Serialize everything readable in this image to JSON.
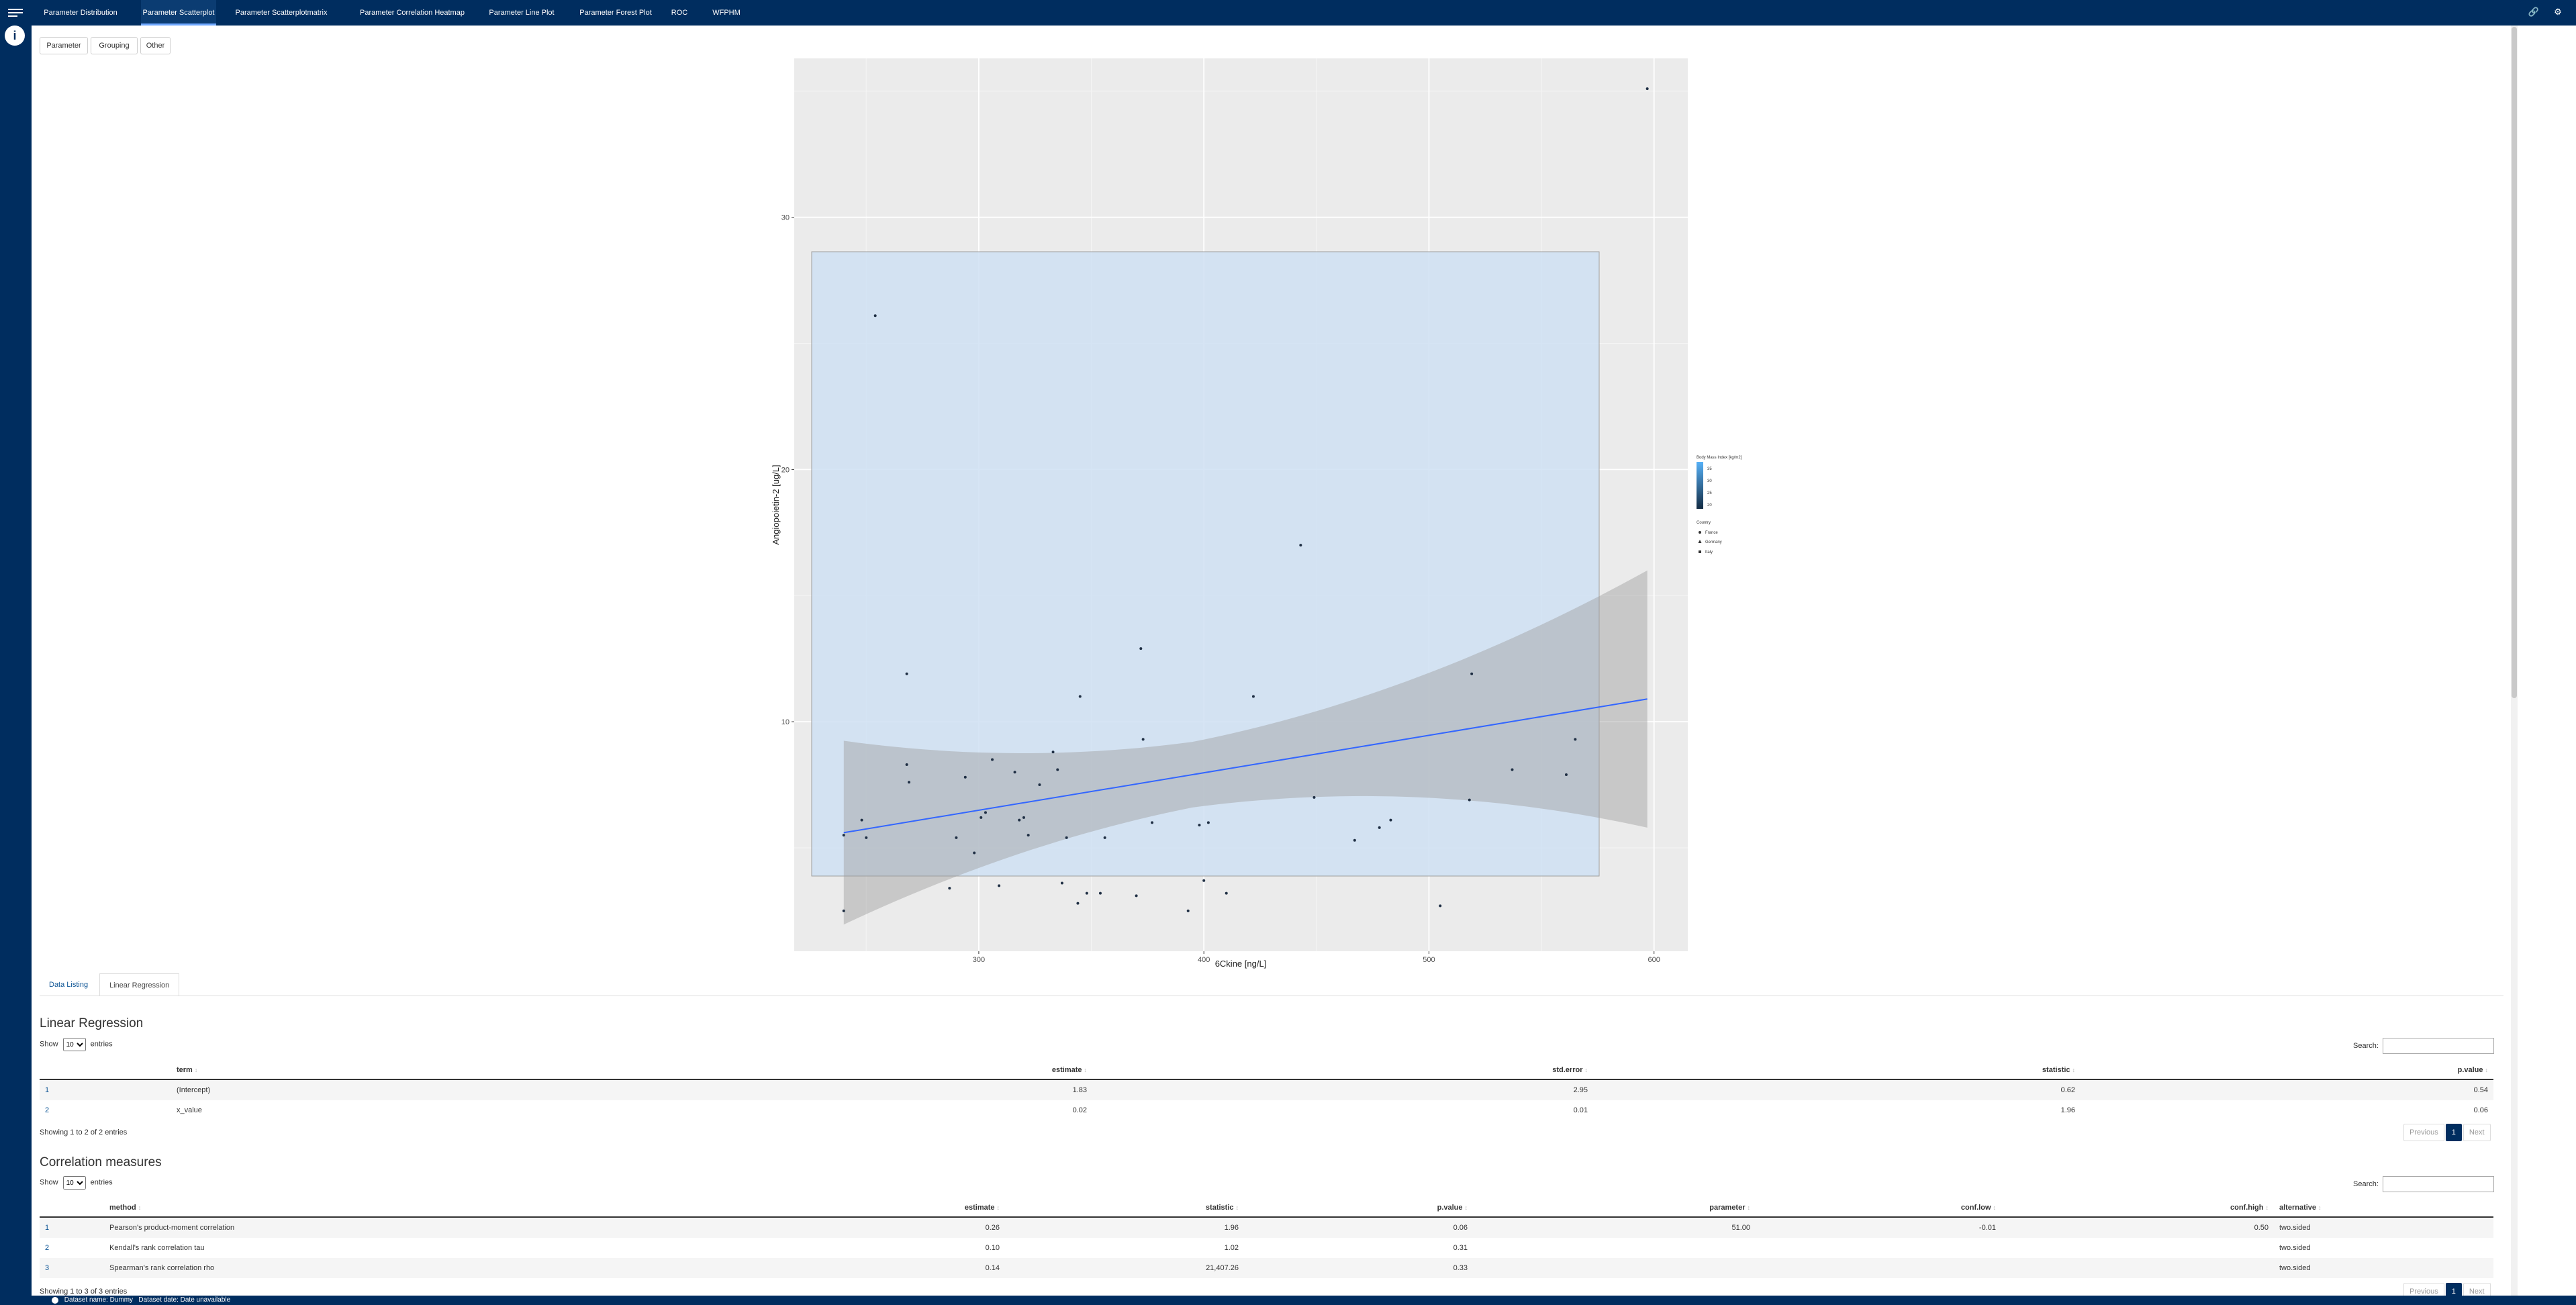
{
  "nav": {
    "tabs": [
      {
        "label": "Parameter Distribution",
        "active": false
      },
      {
        "label": "Parameter Scatterplot",
        "active": true
      },
      {
        "label": "Parameter Scatterplotmatrix",
        "active": false
      },
      {
        "label": "Parameter Correlation Heatmap",
        "active": false
      },
      {
        "label": "Parameter Line Plot",
        "active": false
      },
      {
        "label": "Parameter Forest Plot",
        "active": false
      },
      {
        "label": "ROC",
        "active": false
      },
      {
        "label": "WFPHM",
        "active": false
      }
    ],
    "info_icon": "i"
  },
  "sub_buttons": [
    "Parameter",
    "Grouping",
    "Other"
  ],
  "chart_data": {
    "type": "scatter",
    "xlabel": "6Ckine [ng/L]",
    "ylabel": "Angiopoietin-2 [ug/L]",
    "x_ticks": [
      "300",
      "400",
      "500",
      "600"
    ],
    "y_ticks": [
      "10",
      "20",
      "30"
    ],
    "xlim": [
      218,
      615
    ],
    "ylim": [
      0.9,
      36.3
    ],
    "grid": true,
    "points": [
      [
        240,
        2.5
      ],
      [
        240,
        5.5
      ],
      [
        248,
        6.1
      ],
      [
        250,
        5.4
      ],
      [
        254,
        26.1
      ],
      [
        268,
        8.3
      ],
      [
        268,
        11.9
      ],
      [
        269,
        7.6
      ],
      [
        287,
        3.4
      ],
      [
        290,
        5.4
      ],
      [
        294,
        7.8
      ],
      [
        298,
        4.8
      ],
      [
        301,
        6.2
      ],
      [
        303,
        6.4
      ],
      [
        306,
        8.5
      ],
      [
        309,
        3.5
      ],
      [
        316,
        8.0
      ],
      [
        318,
        6.1
      ],
      [
        320,
        6.2
      ],
      [
        322,
        5.5
      ],
      [
        327,
        7.5
      ],
      [
        333,
        8.8
      ],
      [
        335,
        8.1
      ],
      [
        337,
        3.6
      ],
      [
        339,
        5.4
      ],
      [
        344,
        2.8
      ],
      [
        345,
        11.0
      ],
      [
        348,
        3.2
      ],
      [
        354,
        3.2
      ],
      [
        356,
        5.4
      ],
      [
        370,
        3.1
      ],
      [
        372,
        12.9
      ],
      [
        373,
        9.3
      ],
      [
        377,
        6.0
      ],
      [
        393,
        2.5
      ],
      [
        398,
        5.9
      ],
      [
        400,
        3.7
      ],
      [
        402,
        6.0
      ],
      [
        410,
        3.2
      ],
      [
        422,
        11.0
      ],
      [
        443,
        17.0
      ],
      [
        449,
        7.0
      ],
      [
        467,
        5.3
      ],
      [
        478,
        5.8
      ],
      [
        483,
        6.1
      ],
      [
        505,
        2.7
      ],
      [
        518,
        6.9
      ],
      [
        519,
        11.9
      ],
      [
        537,
        8.1
      ],
      [
        561,
        7.9
      ],
      [
        565,
        9.3
      ],
      [
        597,
        35.1
      ]
    ],
    "regression_line": {
      "x": [
        240,
        597
      ],
      "y": [
        5.6,
        10.9
      ],
      "color": "#3366FF"
    },
    "legend": {
      "placement": "right",
      "colorbar_title": "Body Mass Index [kg/m2]",
      "colorbar_labels": [
        "35",
        "30",
        "25",
        "20"
      ],
      "group_title": "Country",
      "groups": [
        "France",
        "Germany",
        "Italy"
      ]
    }
  },
  "lower_tabs": [
    "Data Listing",
    "Linear Regression"
  ],
  "lr": {
    "title": "Linear Regression",
    "show_label": "Show",
    "entries_label": "entries",
    "page_size": "10",
    "search_label": "Search:",
    "columns": [
      "",
      "term",
      "estimate",
      "std.error",
      "statistic",
      "p.value"
    ],
    "rows": [
      [
        "1",
        "(Intercept)",
        "1.83",
        "2.95",
        "0.62",
        "0.54"
      ],
      [
        "2",
        "x_value",
        "0.02",
        "0.01",
        "1.96",
        "0.06"
      ]
    ],
    "info": "Showing 1 to 2 of 2 entries",
    "pager": [
      "Previous",
      "1",
      "Next"
    ]
  },
  "corr": {
    "title": "Correlation measures",
    "show_label": "Show",
    "entries_label": "entries",
    "page_size": "10",
    "search_label": "Search:",
    "columns": [
      "",
      "method",
      "estimate",
      "statistic",
      "p.value",
      "parameter",
      "conf.low",
      "conf.high",
      "alternative"
    ],
    "rows": [
      [
        "1",
        "Pearson's product-moment correlation",
        "0.26",
        "1.96",
        "0.06",
        "51.00",
        "-0.01",
        "0.50",
        "two.sided"
      ],
      [
        "2",
        "Kendall's rank correlation tau",
        "0.10",
        "1.02",
        "0.31",
        "",
        "",
        "",
        "two.sided"
      ],
      [
        "3",
        "Spearman's rank correlation rho",
        "0.14",
        "21,407.26",
        "0.33",
        "",
        "",
        "",
        "two.sided"
      ]
    ],
    "info": "Showing 1 to 3 of 3 entries",
    "pager": [
      "Previous",
      "1",
      "Next"
    ]
  },
  "footer": {
    "dataset_name": "Dataset name: Dummy",
    "dataset_date": "Dataset date: Date unavailable"
  },
  "colors": {
    "primary": "#002d5f",
    "band": "#b3b3b3",
    "box": "#cfe0f3"
  }
}
